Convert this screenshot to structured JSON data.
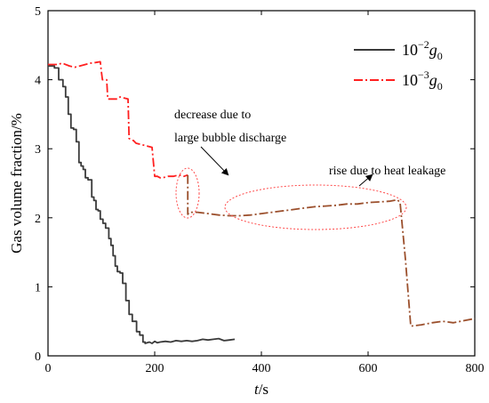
{
  "chart_data": {
    "type": "line",
    "xlabel_italic": "t",
    "xlabel_unit": "/s",
    "ylabel": "Gas volume fraction/%",
    "xlim": [
      0,
      800
    ],
    "ylim": [
      0,
      5
    ],
    "x_ticks": [
      0,
      200,
      400,
      600,
      800
    ],
    "y_ticks": [
      0,
      1,
      2,
      3,
      4,
      5
    ],
    "grid": false,
    "legend_position": "top-right",
    "series": [
      {
        "name_base": "10",
        "name_exp": "−2",
        "name_sym": "g",
        "name_sub": "0",
        "color": "#3a3a3a",
        "style": "solid",
        "x": [
          0,
          12,
          12,
          20,
          20,
          28,
          28,
          33,
          33,
          38,
          38,
          43,
          43,
          48,
          48,
          53,
          53,
          58,
          58,
          62,
          62,
          66,
          66,
          70,
          70,
          75,
          75,
          82,
          82,
          86,
          86,
          90,
          90,
          94,
          94,
          98,
          98,
          103,
          103,
          108,
          108,
          114,
          114,
          118,
          118,
          122,
          122,
          126,
          126,
          130,
          130,
          135,
          135,
          140,
          140,
          146,
          146,
          152,
          152,
          158,
          158,
          166,
          166,
          172,
          172,
          178,
          178,
          182,
          182,
          190,
          195,
          200,
          205,
          210,
          220,
          230,
          240,
          250,
          260,
          270,
          280,
          290,
          300,
          310,
          320,
          330,
          340,
          350
        ],
        "y": [
          4.2,
          4.2,
          4.17,
          4.17,
          4.0,
          4.0,
          3.9,
          3.9,
          3.75,
          3.75,
          3.5,
          3.5,
          3.3,
          3.3,
          3.28,
          3.28,
          3.1,
          3.1,
          2.8,
          2.8,
          2.75,
          2.75,
          2.7,
          2.7,
          2.58,
          2.58,
          2.55,
          2.55,
          2.3,
          2.3,
          2.25,
          2.25,
          2.12,
          2.12,
          2.1,
          2.1,
          1.98,
          1.98,
          1.92,
          1.92,
          1.85,
          1.85,
          1.7,
          1.7,
          1.6,
          1.6,
          1.45,
          1.45,
          1.3,
          1.3,
          1.22,
          1.22,
          1.2,
          1.2,
          1.05,
          1.05,
          0.8,
          0.8,
          0.6,
          0.6,
          0.5,
          0.5,
          0.35,
          0.35,
          0.3,
          0.3,
          0.2,
          0.2,
          0.18,
          0.2,
          0.18,
          0.21,
          0.19,
          0.2,
          0.21,
          0.2,
          0.22,
          0.21,
          0.22,
          0.21,
          0.22,
          0.24,
          0.23,
          0.24,
          0.25,
          0.22,
          0.23,
          0.24
        ]
      },
      {
        "name_base": "10",
        "name_exp": "−3",
        "name_sym": "g",
        "name_sub": "0",
        "color": "#ff2020",
        "style": "dashdot",
        "x": [
          0,
          20,
          25,
          30,
          40,
          50,
          60,
          70,
          80,
          90,
          98,
          100,
          102,
          110,
          112,
          130,
          135,
          150,
          152,
          158,
          160,
          165,
          180,
          195,
          200,
          205,
          210,
          215,
          225,
          235,
          245,
          255,
          262
        ],
        "y": [
          4.22,
          4.22,
          4.24,
          4.23,
          4.2,
          4.18,
          4.2,
          4.22,
          4.24,
          4.25,
          4.26,
          4.12,
          4.0,
          4.0,
          3.72,
          3.72,
          3.75,
          3.72,
          3.15,
          3.12,
          3.12,
          3.08,
          3.05,
          3.02,
          2.6,
          2.6,
          2.58,
          2.58,
          2.6,
          2.6,
          2.62,
          2.6,
          2.62
        ]
      },
      {
        "name": "",
        "color": "#9b4f2c",
        "style": "dashdot",
        "x": [
          262,
          262,
          265,
          280,
          300,
          320,
          340,
          360,
          380,
          400,
          420,
          440,
          460,
          480,
          500,
          520,
          540,
          560,
          580,
          600,
          620,
          640,
          655,
          660,
          670,
          680,
          690,
          700,
          720,
          740,
          760,
          780,
          800
        ],
        "y": [
          2.62,
          2.05,
          2.08,
          2.08,
          2.06,
          2.04,
          2.03,
          2.03,
          2.04,
          2.06,
          2.08,
          2.1,
          2.12,
          2.14,
          2.16,
          2.17,
          2.18,
          2.2,
          2.2,
          2.22,
          2.23,
          2.24,
          2.26,
          2.22,
          1.4,
          0.43,
          0.44,
          0.45,
          0.48,
          0.5,
          0.48,
          0.51,
          0.54
        ]
      }
    ],
    "annotations": [
      {
        "lines": [
          "decrease due to",
          "large bubble discharge"
        ]
      },
      {
        "lines": [
          "rise due to heat leakage"
        ]
      }
    ]
  }
}
